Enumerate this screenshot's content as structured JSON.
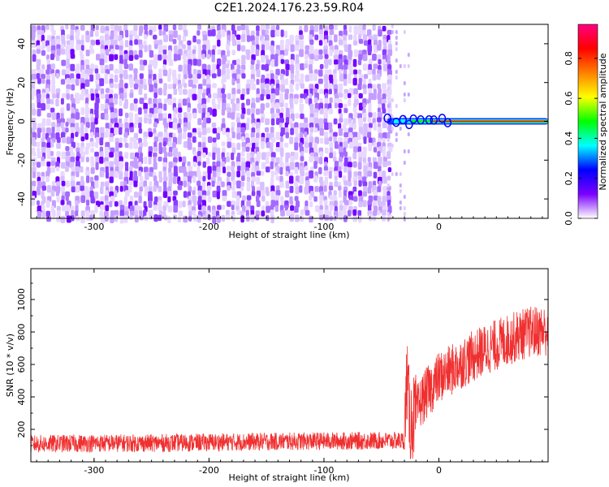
{
  "figure": {
    "title": "C2E1.2024.176.23.59.R04"
  },
  "chart_data": [
    {
      "type": "heatmap",
      "panel": "spectrogram",
      "xlabel": "Height of straight line (km)",
      "ylabel": "Frequency (Hz)",
      "xlim": [
        -355,
        95
      ],
      "ylim": [
        -50,
        50
      ],
      "x_ticks": [
        -300,
        -200,
        -100,
        0
      ],
      "y_ticks": [
        -40,
        -20,
        0,
        20,
        40
      ],
      "x_tick_labels": [
        "-300",
        "-200",
        "-100",
        "0"
      ],
      "y_tick_labels": [
        "-40",
        "-20",
        "0",
        "20",
        "40"
      ],
      "grid": false,
      "noise_region_x": [
        -355,
        -45
      ],
      "signal_onset_x": -45,
      "signal_frequency_hz": 0,
      "colorbar": {
        "label": "Normalized spectral amplitude",
        "range": [
          0,
          0.97
        ],
        "ticks": [
          0.0,
          0.2,
          0.4,
          0.6,
          0.8
        ],
        "tick_labels": [
          "0.0",
          "0.2",
          "0.4",
          "0.6",
          "0.8"
        ],
        "colormap": "rainbow",
        "stops": [
          "#ffffff",
          "#7b00ff",
          "#0000ff",
          "#00ffff",
          "#00ff00",
          "#ffff00",
          "#ff8000",
          "#ff0000",
          "#ff0080"
        ]
      }
    },
    {
      "type": "line",
      "panel": "snr",
      "xlabel": "Height of straight line (km)",
      "ylabel": "SNR (10 * v/v)",
      "xlim": [
        -355,
        95
      ],
      "ylim": [
        0,
        1190
      ],
      "x_ticks": [
        -300,
        -200,
        -100,
        0
      ],
      "y_ticks": [
        200,
        400,
        600,
        800,
        1000
      ],
      "x_tick_labels": [
        "-300",
        "-200",
        "-100",
        "0"
      ],
      "y_tick_labels": [
        "200",
        "400",
        "600",
        "800",
        "1000"
      ],
      "grid": false,
      "series": [
        {
          "color": "#f03030",
          "x": [
            -355,
            -300,
            -250,
            -200,
            -150,
            -100,
            -50,
            -30,
            -28,
            -25,
            -20,
            -15,
            -10,
            -5,
            0,
            10,
            20,
            30,
            40,
            50,
            60,
            70,
            80,
            95
          ],
          "y": [
            110,
            115,
            115,
            120,
            125,
            128,
            130,
            130,
            520,
            240,
            300,
            380,
            430,
            470,
            520,
            560,
            610,
            650,
            690,
            720,
            750,
            780,
            800,
            810
          ]
        }
      ]
    }
  ]
}
